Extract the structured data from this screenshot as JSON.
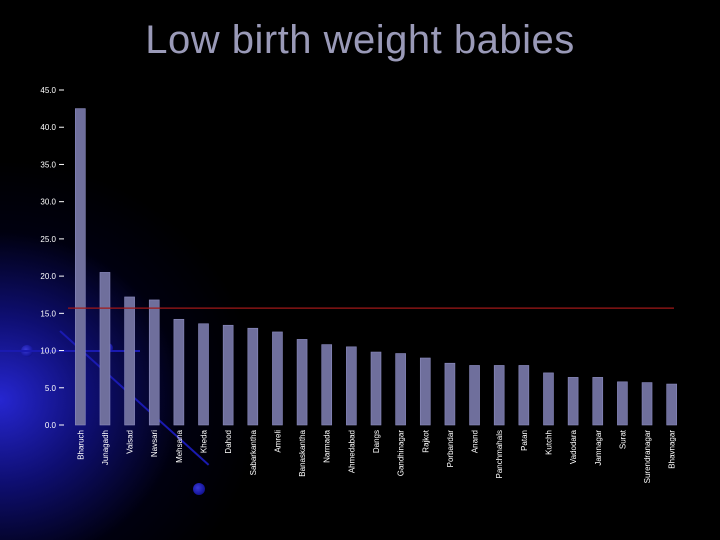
{
  "title": "Low birth weight babies",
  "colors": {
    "background": "#000000",
    "bar": "#6f6f9c",
    "bar_highlight": "#8c8cc0",
    "reference_line": "#a01818",
    "title": "#9a9ab8",
    "text": "#ffffff"
  },
  "chart_data": {
    "type": "bar",
    "title": "Low birth weight babies",
    "xlabel": "",
    "ylabel": "",
    "ylim": [
      0,
      45
    ],
    "yticks": [
      "0.0",
      "5.0",
      "10.0",
      "15.0",
      "20.0",
      "25.0",
      "30.0",
      "35.0",
      "40.0",
      "45.0"
    ],
    "categories": [
      "Bharuch",
      "Junagadh",
      "Valsad",
      "Navsari",
      "Mehsana",
      "Kheda",
      "Dahod",
      "Sabarkantha",
      "Amreli",
      "Banaskantha",
      "Narmada",
      "Ahmedabad",
      "Dangs",
      "Gandhinagar",
      "Rajkot",
      "Porbandar",
      "Anand",
      "Panchmahals",
      "Patan",
      "Kutchh",
      "Vadodara",
      "Jamnagar",
      "Surat",
      "Surendranagar",
      "Bhavnagar"
    ],
    "values": [
      42.5,
      20.5,
      17.2,
      16.8,
      14.2,
      13.6,
      13.4,
      13.0,
      12.5,
      11.5,
      10.8,
      10.5,
      9.8,
      9.6,
      9.0,
      8.3,
      8.0,
      8.0,
      8.0,
      7.0,
      6.4,
      6.4,
      5.8,
      5.7,
      5.5
    ],
    "reference_line": 15.7,
    "grid": false,
    "legend": "none"
  }
}
